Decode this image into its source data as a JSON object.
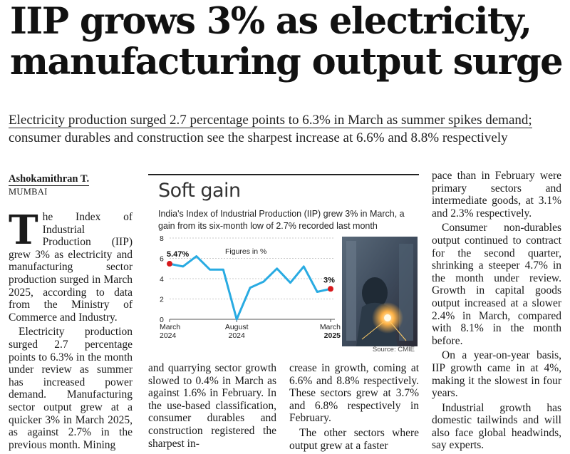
{
  "headline": {
    "line1": "IIP grows 3% as electricity,",
    "line2": "manufacturing output surge"
  },
  "standfirst": {
    "line1": "Electricity production surged 2.7 percentage points to 6.3% in March as summer spikes demand;",
    "line2": "consumer durables and construction see the sharpest increase at 6.6% and 8.8% respectively"
  },
  "byline": {
    "author": "Ashokamithran T.",
    "location": "MUMBAI"
  },
  "article": {
    "dropcap": "T",
    "col1": [
      "he Index of Industrial Production (IIP) grew 3% as electricity and manufacturing sector production surged in March 2025, according to data from the Ministry of Commerce and Industry.",
      "Electricity production surged 2.7 percentage points to 6.3% in the month under review as summer has increased power demand. Manufacturing sector output grew at a quicker 3% in March 2025, as against 2.7% in the previous month. Mining"
    ],
    "col2": [
      "and quarrying sector growth slowed to 0.4% in March as against 1.6% in February. In the use-based classification, consumer durables and construction registered the sharpest in-"
    ],
    "col3": [
      "crease in growth, coming at 6.6% and 8.8% respectively. These sectors grew at 3.7% and 6.8% respectively in February.",
      "The other sectors where output grew at a faster"
    ],
    "col4": [
      "pace than in February were primary sectors and intermediate goods, at 3.1% and 2.3% respectively.",
      "Consumer non-durables output continued to contract for the second quarter, shrinking a steeper 4.7% in the month under review. Growth in capital goods output increased at a slower 2.4% in March, compared with 8.1% in the month before.",
      "On a year-on-year basis, IIP growth came in at 4%, making it the slowest in four years.",
      "Industrial growth has domestic tailwinds and will also face global headwinds, say experts."
    ]
  },
  "chart_data": {
    "type": "line",
    "title": "Soft gain",
    "subtitle": "India's Index of Industrial Production (IIP) grew 3% in March, a gain from its six-month low of 2.7% recorded last month",
    "unit_label": "Figures in %",
    "source": "Source: CMIE",
    "ylim": [
      0,
      8
    ],
    "yticks": [
      "0",
      "2",
      "4",
      "6",
      "8"
    ],
    "x_ticks": [
      {
        "line1": "March",
        "line2": "2024",
        "index": 0
      },
      {
        "line1": "August",
        "line2": "2024",
        "index": 5
      },
      {
        "line1": "March",
        "line2": "2025",
        "index": 12
      }
    ],
    "series": [
      {
        "values": [
          5.47,
          5.2,
          6.2,
          4.9,
          4.9,
          0.0,
          3.1,
          3.7,
          5.0,
          3.6,
          5.2,
          2.7,
          3.0
        ],
        "color": "#29abe2"
      }
    ],
    "labels": {
      "first": "5.47%",
      "last": "3%"
    },
    "marker_color": "#d7191c"
  },
  "photo": {
    "icon": "welder-photo-icon"
  }
}
